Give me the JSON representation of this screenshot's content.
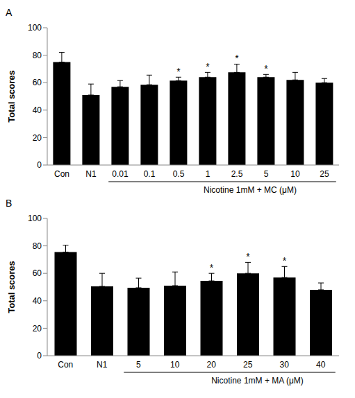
{
  "chart_data": [
    {
      "type": "bar",
      "title": "A",
      "ylabel": "Total scores",
      "xlabel": "Nicotine 1mM + MC (μM)",
      "categories": [
        "Con",
        "N1",
        "0.01",
        "0.1",
        "0.5",
        "1",
        "2.5",
        "5",
        "10",
        "25"
      ],
      "values": [
        75,
        51,
        57,
        58.5,
        61.5,
        64,
        67.5,
        64,
        62,
        60
      ],
      "errors": [
        7,
        8,
        4.5,
        7,
        2.5,
        3.5,
        6,
        2,
        5.5,
        3
      ],
      "annotations": [
        null,
        null,
        null,
        null,
        "*",
        "*",
        "*",
        "*",
        null,
        null
      ],
      "color": "#000000",
      "ylim": [
        0,
        100
      ],
      "yticks": [
        0,
        20,
        40,
        60,
        80,
        100
      ],
      "grid": false
    },
    {
      "type": "bar",
      "title": "B",
      "ylabel": "Total scores",
      "xlabel": "Nicotine 1mM + MA (μM)",
      "categories": [
        "Con",
        "N1",
        "5",
        "10",
        "20",
        "25",
        "30",
        "40"
      ],
      "values": [
        75.5,
        50.5,
        49.5,
        51,
        54.5,
        60,
        57,
        48
      ],
      "errors": [
        5,
        9.5,
        7,
        10,
        5.5,
        8,
        8,
        5
      ],
      "annotations": [
        null,
        null,
        null,
        null,
        "*",
        "*",
        "*",
        null
      ],
      "color": "#000000",
      "ylim": [
        0,
        100
      ],
      "yticks": [
        0,
        20,
        40,
        60,
        80,
        100
      ],
      "grid": false
    }
  ]
}
